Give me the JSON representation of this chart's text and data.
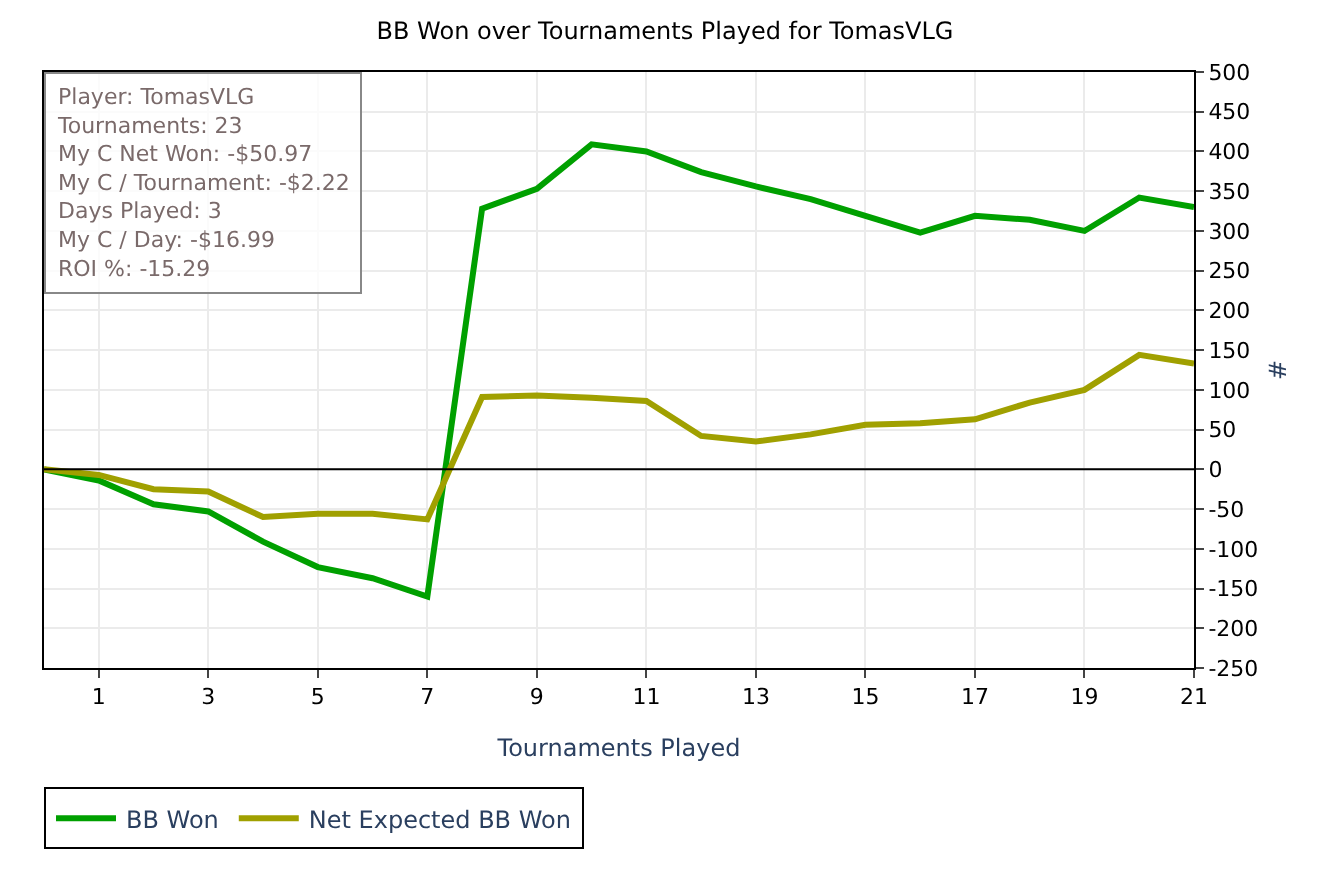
{
  "chart_data": {
    "type": "line",
    "title": "BB Won over Tournaments Played for TomasVLG",
    "xlabel": "Tournaments Played",
    "ylabel": "#",
    "x": [
      0,
      1,
      2,
      3,
      4,
      5,
      6,
      7,
      8,
      9,
      10,
      11,
      12,
      13,
      14,
      15,
      16,
      17,
      18,
      19,
      20,
      21
    ],
    "series": [
      {
        "name": "BB Won",
        "color": "#00a000",
        "values": [
          0,
          -14,
          -44,
          -53,
          -91,
          -123,
          -137,
          -160,
          328,
          353,
          409,
          400,
          374,
          356,
          340,
          319,
          298,
          319,
          314,
          300,
          342,
          330
        ]
      },
      {
        "name": "Net Expected BB Won",
        "color": "#a0a000",
        "values": [
          0,
          -7,
          -25,
          -28,
          -60,
          -56,
          -56,
          -63,
          91,
          93,
          90,
          86,
          42,
          35,
          44,
          56,
          58,
          63,
          84,
          100,
          144,
          133
        ]
      }
    ],
    "xlim": [
      0,
      21
    ],
    "xticks": [
      1,
      3,
      5,
      7,
      9,
      11,
      13,
      15,
      17,
      19,
      21
    ],
    "ylim": [
      -250,
      500
    ],
    "yticks": [
      -250,
      -200,
      -150,
      -100,
      -50,
      0,
      50,
      100,
      150,
      200,
      250,
      300,
      350,
      400,
      450,
      500
    ],
    "ref_lines": [
      {
        "axis": "y",
        "value": 0,
        "color": "#000000"
      }
    ],
    "annotations": [
      "Player: TomasVLG",
      "Tournaments: 23",
      "My C Net Won: -$50.97",
      "My C / Tournament: -$2.22",
      "Days Played: 3",
      "My C / Day: -$16.99",
      "ROI %: -15.29"
    ],
    "grid": true,
    "legend": "bottom left",
    "marker": "none",
    "line_style": "solid"
  }
}
